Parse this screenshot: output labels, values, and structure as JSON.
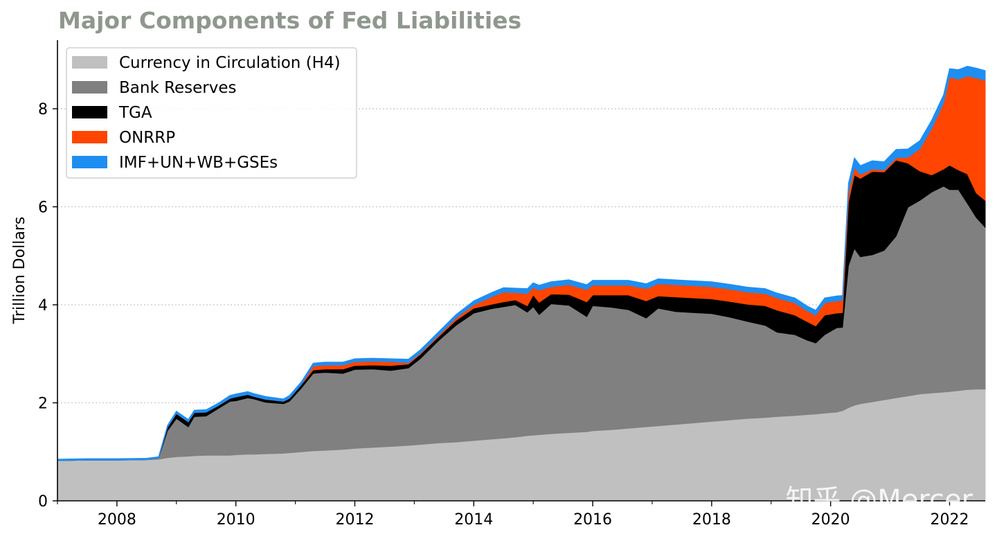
{
  "watermark": "知乎 @Mercer",
  "chart_data": {
    "type": "area",
    "stacked": true,
    "title": "Major Components of Fed Liabilities",
    "xlabel": "",
    "ylabel": "Trillion Dollars",
    "xlim": [
      2007.0,
      2022.6
    ],
    "ylim": [
      0,
      9.4
    ],
    "x_ticks": [
      2008,
      2010,
      2012,
      2014,
      2016,
      2018,
      2020,
      2022
    ],
    "y_ticks": [
      0,
      2,
      4,
      6,
      8
    ],
    "grid": "horizontal dotted",
    "legend_position": "top-left",
    "x": [
      2007.0,
      2007.5,
      2008.0,
      2008.5,
      2008.7,
      2008.85,
      2009.0,
      2009.2,
      2009.3,
      2009.5,
      2009.7,
      2009.9,
      2010.0,
      2010.2,
      2010.3,
      2010.5,
      2010.8,
      2010.9,
      2011.1,
      2011.3,
      2011.5,
      2011.8,
      2012.0,
      2012.3,
      2012.6,
      2012.9,
      2013.1,
      2013.4,
      2013.7,
      2014.0,
      2014.3,
      2014.5,
      2014.7,
      2014.9,
      2015.0,
      2015.1,
      2015.3,
      2015.6,
      2015.9,
      2016.0,
      2016.3,
      2016.6,
      2016.9,
      2017.1,
      2017.4,
      2017.7,
      2018.0,
      2018.3,
      2018.6,
      2018.9,
      2019.1,
      2019.4,
      2019.6,
      2019.75,
      2019.9,
      2020.1,
      2020.2,
      2020.3,
      2020.4,
      2020.5,
      2020.7,
      2020.9,
      2021.1,
      2021.3,
      2021.5,
      2021.7,
      2021.9,
      2022.0,
      2022.15,
      2022.3,
      2022.45,
      2022.6
    ],
    "series": [
      {
        "name": "Currency in Circulation (H4)",
        "color": "#c0c0c0",
        "values": [
          0.82,
          0.83,
          0.83,
          0.84,
          0.85,
          0.88,
          0.9,
          0.91,
          0.92,
          0.93,
          0.93,
          0.93,
          0.94,
          0.95,
          0.95,
          0.96,
          0.97,
          0.98,
          1.0,
          1.02,
          1.03,
          1.05,
          1.07,
          1.09,
          1.11,
          1.13,
          1.15,
          1.18,
          1.2,
          1.23,
          1.26,
          1.28,
          1.3,
          1.33,
          1.34,
          1.35,
          1.37,
          1.39,
          1.41,
          1.43,
          1.45,
          1.48,
          1.51,
          1.53,
          1.56,
          1.59,
          1.62,
          1.65,
          1.68,
          1.7,
          1.72,
          1.74,
          1.76,
          1.77,
          1.79,
          1.81,
          1.84,
          1.9,
          1.95,
          1.98,
          2.02,
          2.06,
          2.1,
          2.14,
          2.18,
          2.2,
          2.22,
          2.23,
          2.25,
          2.27,
          2.28,
          2.28
        ]
      },
      {
        "name": "Bank Reserves",
        "color": "#808080",
        "values": [
          0.0,
          0.0,
          0.0,
          0.0,
          0.02,
          0.55,
          0.78,
          0.6,
          0.8,
          0.8,
          0.95,
          1.1,
          1.1,
          1.15,
          1.13,
          1.05,
          1.01,
          1.05,
          1.3,
          1.58,
          1.59,
          1.55,
          1.61,
          1.6,
          1.55,
          1.58,
          1.75,
          2.08,
          2.38,
          2.6,
          2.66,
          2.68,
          2.7,
          2.52,
          2.62,
          2.45,
          2.65,
          2.6,
          2.35,
          2.55,
          2.5,
          2.42,
          2.22,
          2.4,
          2.3,
          2.25,
          2.2,
          2.1,
          1.98,
          1.88,
          1.72,
          1.65,
          1.52,
          1.45,
          1.6,
          1.72,
          1.7,
          2.9,
          3.2,
          3.0,
          3.0,
          3.05,
          3.3,
          3.85,
          3.95,
          4.1,
          4.2,
          4.12,
          4.1,
          3.8,
          3.5,
          3.3
        ]
      },
      {
        "name": "TGA",
        "color": "#000000",
        "values": [
          0.0,
          0.0,
          0.0,
          0.0,
          0.0,
          0.07,
          0.1,
          0.1,
          0.08,
          0.08,
          0.06,
          0.06,
          0.08,
          0.07,
          0.05,
          0.06,
          0.05,
          0.06,
          0.07,
          0.07,
          0.07,
          0.09,
          0.08,
          0.08,
          0.1,
          0.08,
          0.09,
          0.08,
          0.1,
          0.1,
          0.09,
          0.1,
          0.1,
          0.13,
          0.24,
          0.25,
          0.2,
          0.22,
          0.3,
          0.22,
          0.25,
          0.3,
          0.35,
          0.25,
          0.3,
          0.3,
          0.3,
          0.32,
          0.35,
          0.4,
          0.45,
          0.4,
          0.38,
          0.35,
          0.4,
          0.3,
          0.3,
          1.3,
          1.5,
          1.6,
          1.7,
          1.6,
          1.55,
          0.9,
          0.6,
          0.35,
          0.35,
          0.5,
          0.4,
          0.6,
          0.5,
          0.55
        ]
      },
      {
        "name": "ONRRP",
        "color": "#ff4500",
        "values": [
          0.0,
          0.0,
          0.0,
          0.0,
          0.0,
          0.0,
          0.0,
          0.0,
          0.0,
          0.0,
          0.0,
          0.0,
          0.0,
          0.0,
          0.0,
          0.0,
          0.0,
          0.0,
          0.0,
          0.08,
          0.08,
          0.08,
          0.08,
          0.08,
          0.08,
          0.03,
          0.02,
          0.03,
          0.05,
          0.07,
          0.15,
          0.2,
          0.15,
          0.25,
          0.15,
          0.25,
          0.15,
          0.2,
          0.25,
          0.2,
          0.2,
          0.2,
          0.25,
          0.25,
          0.25,
          0.25,
          0.25,
          0.25,
          0.25,
          0.25,
          0.25,
          0.25,
          0.22,
          0.22,
          0.25,
          0.25,
          0.25,
          0.2,
          0.15,
          0.08,
          0.05,
          0.04,
          0.05,
          0.12,
          0.45,
          0.95,
          1.35,
          1.8,
          1.85,
          2.0,
          2.35,
          2.45
        ]
      },
      {
        "name": "IMF+UN+WB+GSEs",
        "color": "#1f8ef1",
        "values": [
          0.03,
          0.03,
          0.03,
          0.03,
          0.03,
          0.04,
          0.05,
          0.05,
          0.05,
          0.05,
          0.05,
          0.06,
          0.06,
          0.06,
          0.06,
          0.06,
          0.05,
          0.06,
          0.06,
          0.06,
          0.06,
          0.06,
          0.06,
          0.06,
          0.06,
          0.07,
          0.07,
          0.07,
          0.07,
          0.08,
          0.09,
          0.09,
          0.09,
          0.1,
          0.1,
          0.1,
          0.1,
          0.1,
          0.1,
          0.1,
          0.1,
          0.1,
          0.1,
          0.1,
          0.1,
          0.1,
          0.1,
          0.1,
          0.1,
          0.1,
          0.1,
          0.1,
          0.1,
          0.1,
          0.1,
          0.1,
          0.1,
          0.18,
          0.2,
          0.18,
          0.17,
          0.17,
          0.17,
          0.17,
          0.17,
          0.17,
          0.17,
          0.17,
          0.2,
          0.2,
          0.2,
          0.2
        ]
      }
    ]
  }
}
